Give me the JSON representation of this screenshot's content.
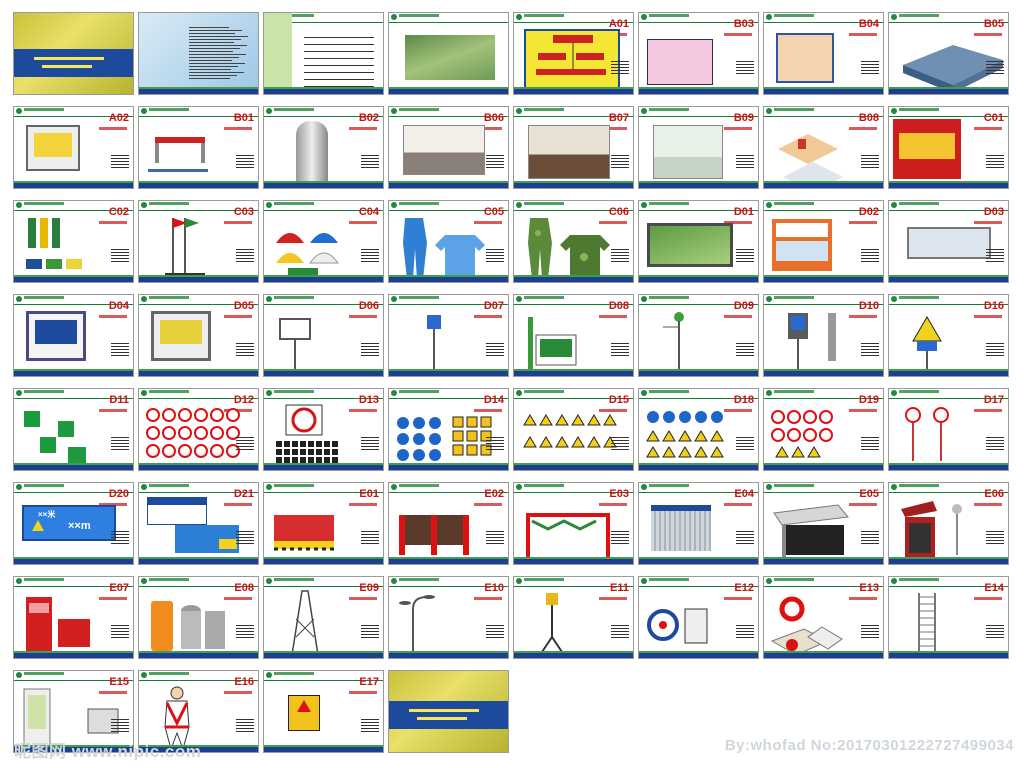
{
  "tiles": [
    {
      "row": 0,
      "col": 0,
      "kind": "cover",
      "code": ""
    },
    {
      "row": 0,
      "col": 1,
      "kind": "doc",
      "code": ""
    },
    {
      "row": 0,
      "col": 2,
      "kind": "toc",
      "code": ""
    },
    {
      "row": 0,
      "col": 3,
      "kind": "aerial",
      "code": ""
    },
    {
      "row": 0,
      "col": 4,
      "kind": "org",
      "code": "A01"
    },
    {
      "row": 0,
      "col": 5,
      "kind": "plan",
      "code": "B03"
    },
    {
      "row": 0,
      "col": 6,
      "kind": "plan2",
      "code": "B04"
    },
    {
      "row": 0,
      "col": 7,
      "kind": "building",
      "code": "B05"
    },
    {
      "row": 1,
      "col": 0,
      "kind": "board",
      "code": "A02"
    },
    {
      "row": 1,
      "col": 1,
      "kind": "gate",
      "code": "B01"
    },
    {
      "row": 1,
      "col": 2,
      "kind": "booth",
      "code": "B02"
    },
    {
      "row": 1,
      "col": 3,
      "kind": "room",
      "code": "B06"
    },
    {
      "row": 1,
      "col": 4,
      "kind": "room2",
      "code": "B07"
    },
    {
      "row": 1,
      "col": 5,
      "kind": "room3",
      "code": "B09"
    },
    {
      "row": 1,
      "col": 6,
      "kind": "iso",
      "code": "B08"
    },
    {
      "row": 1,
      "col": 7,
      "kind": "redboard",
      "code": "C01"
    },
    {
      "row": 2,
      "col": 0,
      "kind": "flags",
      "code": "C02"
    },
    {
      "row": 2,
      "col": 1,
      "kind": "flagpole",
      "code": "C03"
    },
    {
      "row": 2,
      "col": 2,
      "kind": "helmets",
      "code": "C04"
    },
    {
      "row": 2,
      "col": 3,
      "kind": "uniform-blue",
      "code": "C05"
    },
    {
      "row": 2,
      "col": 4,
      "kind": "uniform-camo",
      "code": "C06"
    },
    {
      "row": 2,
      "col": 5,
      "kind": "greenboard",
      "code": "D01"
    },
    {
      "row": 2,
      "col": 6,
      "kind": "sign-orange",
      "code": "D02"
    },
    {
      "row": 2,
      "col": 7,
      "kind": "fence-sign",
      "code": "D03"
    },
    {
      "row": 3,
      "col": 0,
      "kind": "board-blue",
      "code": "D04"
    },
    {
      "row": 3,
      "col": 1,
      "kind": "board-yellow",
      "code": "D05"
    },
    {
      "row": 3,
      "col": 2,
      "kind": "lightbox",
      "code": "D06"
    },
    {
      "row": 3,
      "col": 3,
      "kind": "post-sign",
      "code": "D07"
    },
    {
      "row": 3,
      "col": 4,
      "kind": "panel",
      "code": "D08"
    },
    {
      "row": 3,
      "col": 5,
      "kind": "lamp",
      "code": "D09"
    },
    {
      "row": 3,
      "col": 6,
      "kind": "kiosk",
      "code": "D10"
    },
    {
      "row": 3,
      "col": 7,
      "kind": "warn-post",
      "code": "D16"
    },
    {
      "row": 4,
      "col": 0,
      "kind": "exit",
      "code": "D11"
    },
    {
      "row": 4,
      "col": 1,
      "kind": "prohibit",
      "code": "D12"
    },
    {
      "row": 4,
      "col": 2,
      "kind": "nosmoke",
      "code": "D13"
    },
    {
      "row": 4,
      "col": 3,
      "kind": "mandatory",
      "code": "D14"
    },
    {
      "row": 4,
      "col": 4,
      "kind": "warning",
      "code": "D15"
    },
    {
      "row": 4,
      "col": 5,
      "kind": "mixed",
      "code": "D18"
    },
    {
      "row": 4,
      "col": 6,
      "kind": "mixed2",
      "code": "D19"
    },
    {
      "row": 4,
      "col": 7,
      "kind": "speed",
      "code": "D17"
    },
    {
      "row": 5,
      "col": 0,
      "kind": "distance",
      "code": "D20"
    },
    {
      "row": 5,
      "col": 1,
      "kind": "cards",
      "code": "D21"
    },
    {
      "row": 5,
      "col": 2,
      "kind": "barrier",
      "code": "E01"
    },
    {
      "row": 5,
      "col": 3,
      "kind": "barrier2",
      "code": "E02"
    },
    {
      "row": 5,
      "col": 4,
      "kind": "arch",
      "code": "E03"
    },
    {
      "row": 5,
      "col": 5,
      "kind": "container",
      "code": "E04"
    },
    {
      "row": 5,
      "col": 6,
      "kind": "shelter",
      "code": "E05"
    },
    {
      "row": 5,
      "col": 7,
      "kind": "cabin",
      "code": "E06"
    },
    {
      "row": 6,
      "col": 0,
      "kind": "firebox",
      "code": "E07"
    },
    {
      "row": 6,
      "col": 1,
      "kind": "bins",
      "code": "E08"
    },
    {
      "row": 6,
      "col": 2,
      "kind": "tower",
      "code": "E09"
    },
    {
      "row": 6,
      "col": 3,
      "kind": "streetlight",
      "code": "E10"
    },
    {
      "row": 6,
      "col": 4,
      "kind": "tripod",
      "code": "E11"
    },
    {
      "row": 6,
      "col": 5,
      "kind": "reel",
      "code": "E12"
    },
    {
      "row": 6,
      "col": 6,
      "kind": "buoy",
      "code": "E13"
    },
    {
      "row": 6,
      "col": 7,
      "kind": "ladder",
      "code": "E14"
    },
    {
      "row": 7,
      "col": 0,
      "kind": "door",
      "code": "E15"
    },
    {
      "row": 7,
      "col": 1,
      "kind": "harness",
      "code": "E16"
    },
    {
      "row": 7,
      "col": 2,
      "kind": "electric",
      "code": "E17"
    },
    {
      "row": 7,
      "col": 3,
      "kind": "backcover",
      "code": ""
    }
  ],
  "distance_sign": {
    "line1": "××米",
    "line2": "××m"
  },
  "watermarks": {
    "left": "昵图网 www.nipic.com",
    "right": "By:whofad No:20170301222727499034"
  },
  "colors": {
    "frame": "#1f8a3c",
    "footer": "#1c3f94",
    "code": "#cc1111"
  }
}
